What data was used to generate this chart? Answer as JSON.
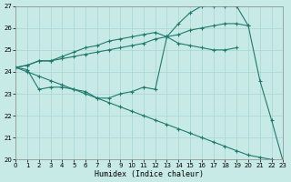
{
  "xlabel": "Humidex (Indice chaleur)",
  "xlim": [
    0,
    23
  ],
  "ylim": [
    20,
    27
  ],
  "yticks": [
    20,
    21,
    22,
    23,
    24,
    25,
    26,
    27
  ],
  "xticks": [
    0,
    1,
    2,
    3,
    4,
    5,
    6,
    7,
    8,
    9,
    10,
    11,
    12,
    13,
    14,
    15,
    16,
    17,
    18,
    19,
    20,
    21,
    22,
    23
  ],
  "background_color": "#c8eae6",
  "grid_color": "#a8d5d0",
  "line_color": "#1e7a6e",
  "lines": [
    {
      "x": [
        0,
        1,
        2,
        3,
        4,
        5,
        6,
        7,
        8,
        9,
        10,
        11,
        12,
        13,
        14,
        15,
        16,
        17,
        18,
        19,
        20,
        21,
        22,
        23
      ],
      "y": [
        24.2,
        24.3,
        24.5,
        24.5,
        24.7,
        24.9,
        25.1,
        25.2,
        25.4,
        25.5,
        25.6,
        25.7,
        25.8,
        25.6,
        26.2,
        26.7,
        27.0,
        27.0,
        27.0,
        27.0,
        26.1,
        23.6,
        21.8,
        19.9
      ]
    },
    {
      "x": [
        0,
        1,
        2,
        3,
        4,
        5,
        6,
        7,
        8,
        9,
        10,
        11,
        12,
        13,
        14,
        15,
        16,
        17,
        18,
        19,
        20
      ],
      "y": [
        24.2,
        24.3,
        24.5,
        24.5,
        24.6,
        24.7,
        24.8,
        24.9,
        25.0,
        25.1,
        25.2,
        25.3,
        25.5,
        25.6,
        25.7,
        25.9,
        26.0,
        26.1,
        26.2,
        26.2,
        26.1
      ]
    },
    {
      "x": [
        0,
        1,
        2,
        3,
        4,
        5,
        6,
        7,
        8,
        9,
        10,
        11,
        12,
        13,
        14,
        15,
        16,
        17,
        18,
        19
      ],
      "y": [
        24.2,
        24.1,
        23.2,
        23.3,
        23.3,
        23.2,
        23.1,
        22.8,
        22.8,
        23.0,
        23.1,
        23.3,
        23.2,
        25.6,
        25.3,
        25.2,
        25.1,
        25.0,
        25.0,
        25.1
      ]
    },
    {
      "x": [
        0,
        1,
        2,
        3,
        4,
        5,
        6,
        7,
        8,
        9,
        10,
        11,
        12,
        13,
        14,
        15,
        16,
        17,
        18,
        19,
        20,
        21,
        22,
        23
      ],
      "y": [
        24.2,
        24.0,
        23.8,
        23.6,
        23.4,
        23.2,
        23.0,
        22.8,
        22.6,
        22.4,
        22.2,
        22.0,
        21.8,
        21.6,
        21.4,
        21.2,
        21.0,
        20.8,
        20.6,
        20.4,
        20.2,
        20.1,
        20.0,
        19.9
      ]
    }
  ]
}
